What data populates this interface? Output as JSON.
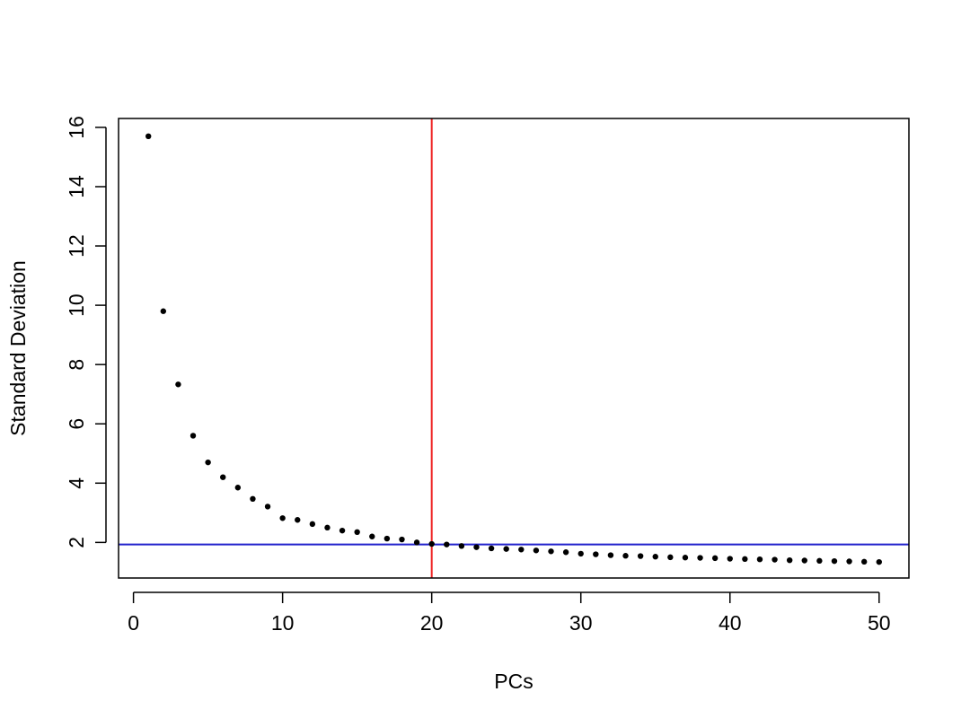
{
  "chart_data": {
    "type": "scatter",
    "xlabel": "PCs",
    "ylabel": "Standard Deviation",
    "xlim": [
      -1,
      52
    ],
    "ylim": [
      0.8,
      16.3
    ],
    "xticks": [
      0,
      10,
      20,
      30,
      40,
      50
    ],
    "yticks": [
      2,
      4,
      6,
      8,
      10,
      12,
      14,
      16
    ],
    "grid": false,
    "series": [
      {
        "x": [
          1,
          2,
          3,
          4,
          5,
          6,
          7,
          8,
          9,
          10,
          11,
          12,
          13,
          14,
          15,
          16,
          17,
          18,
          19,
          20,
          21,
          22,
          23,
          24,
          25,
          26,
          27,
          28,
          29,
          30,
          31,
          32,
          33,
          34,
          35,
          36,
          37,
          38,
          39,
          40,
          41,
          42,
          43,
          44,
          45,
          46,
          47,
          48,
          49,
          50
        ],
        "values": [
          15.7,
          9.8,
          7.33,
          5.6,
          4.7,
          4.2,
          3.85,
          3.47,
          3.21,
          2.82,
          2.76,
          2.62,
          2.5,
          2.4,
          2.35,
          2.2,
          2.13,
          2.1,
          2.0,
          1.95,
          1.93,
          1.88,
          1.84,
          1.8,
          1.78,
          1.76,
          1.73,
          1.7,
          1.67,
          1.62,
          1.6,
          1.57,
          1.55,
          1.54,
          1.52,
          1.5,
          1.49,
          1.48,
          1.47,
          1.45,
          1.44,
          1.43,
          1.42,
          1.4,
          1.39,
          1.38,
          1.37,
          1.36,
          1.35,
          1.34
        ],
        "color": "#000000"
      }
    ],
    "reference_lines": [
      {
        "orientation": "vertical",
        "value": 20,
        "color": "#ee2222"
      },
      {
        "orientation": "horizontal",
        "value": 1.93,
        "color": "#2222cc"
      }
    ]
  }
}
